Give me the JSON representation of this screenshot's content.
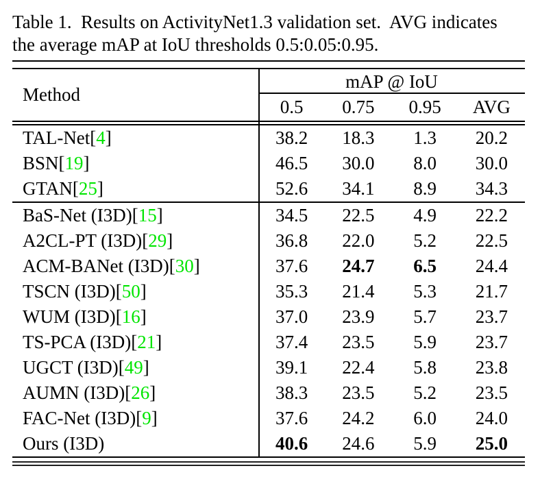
{
  "caption": {
    "line1": "Table 1.  Results on ActivityNet1.3 validation set.  AVG indicates",
    "line2": "the average mAP at IoU thresholds 0.5:0.05:0.95."
  },
  "colors": {
    "citation_green": "#00e500",
    "text": "#000000",
    "background": "#ffffff"
  },
  "table": {
    "method_header": "Method",
    "group_header": "mAP @ IoU",
    "columns": [
      "0.5",
      "0.75",
      "0.95",
      "AVG"
    ],
    "groups": [
      [
        {
          "method": "TAL-Net",
          "cite": "4",
          "values": [
            "38.2",
            "18.3",
            "1.3",
            "20.2"
          ],
          "bold": []
        },
        {
          "method": "BSN",
          "cite": "19",
          "values": [
            "46.5",
            "30.0",
            "8.0",
            "30.0"
          ],
          "bold": []
        },
        {
          "method": "GTAN",
          "cite": "25",
          "values": [
            "52.6",
            "34.1",
            "8.9",
            "34.3"
          ],
          "bold": []
        }
      ],
      [
        {
          "method": "BaS-Net (I3D)",
          "cite": "15",
          "values": [
            "34.5",
            "22.5",
            "4.9",
            "22.2"
          ],
          "bold": []
        },
        {
          "method": "A2CL-PT (I3D)",
          "cite": "29",
          "values": [
            "36.8",
            "22.0",
            "5.2",
            "22.5"
          ],
          "bold": []
        },
        {
          "method": "ACM-BANet (I3D)",
          "cite": "30",
          "values": [
            "37.6",
            "24.7",
            "6.5",
            "24.4"
          ],
          "bold": [
            1,
            2
          ]
        },
        {
          "method": "TSCN (I3D)",
          "cite": "50",
          "values": [
            "35.3",
            "21.4",
            "5.3",
            "21.7"
          ],
          "bold": []
        },
        {
          "method": "WUM (I3D)",
          "cite": "16",
          "values": [
            "37.0",
            "23.9",
            "5.7",
            "23.7"
          ],
          "bold": []
        },
        {
          "method": "TS-PCA (I3D)",
          "cite": "21",
          "values": [
            "37.4",
            "23.5",
            "5.9",
            "23.7"
          ],
          "bold": []
        },
        {
          "method": "UGCT (I3D)",
          "cite": "49",
          "values": [
            "39.1",
            "22.4",
            "5.8",
            "23.8"
          ],
          "bold": []
        },
        {
          "method": "AUMN (I3D)",
          "cite": "26",
          "values": [
            "38.3",
            "23.5",
            "5.2",
            "23.5"
          ],
          "bold": []
        },
        {
          "method": "FAC-Net (I3D)",
          "cite": "9",
          "values": [
            "37.6",
            "24.2",
            "6.0",
            "24.0"
          ],
          "bold": []
        },
        {
          "method": "Ours (I3D)",
          "cite": null,
          "values": [
            "40.6",
            "24.6",
            "5.9",
            "25.0"
          ],
          "bold": [
            0,
            3
          ]
        }
      ]
    ]
  }
}
